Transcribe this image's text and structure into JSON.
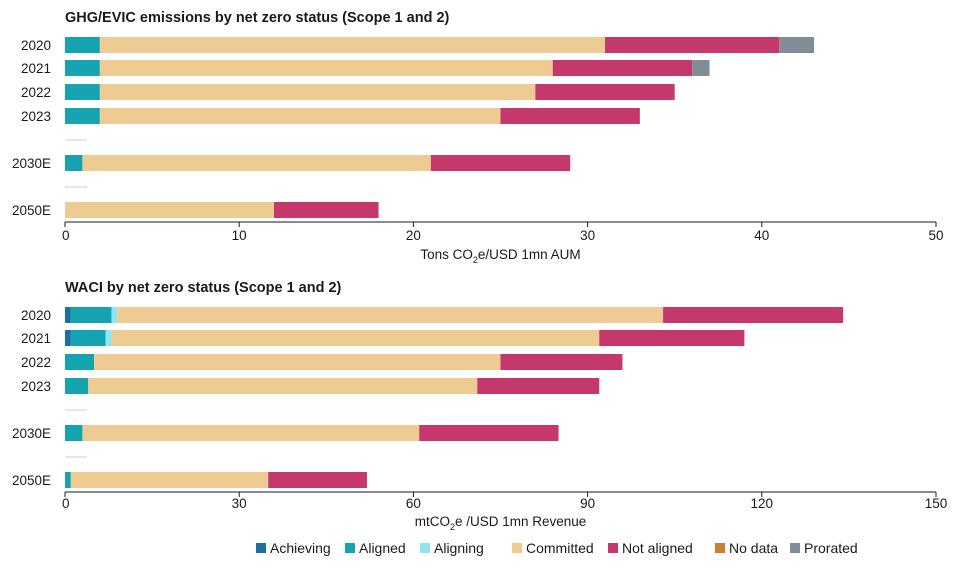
{
  "legend": [
    {
      "name": "Achieving",
      "color": "#1b6fa3"
    },
    {
      "name": "Aligned",
      "color": "#16a3b0"
    },
    {
      "name": "Aligning",
      "color": "#8ee4f0"
    },
    {
      "name": "Committed",
      "color": "#efcb94"
    },
    {
      "name": "Not aligned",
      "color": "#c4386b"
    },
    {
      "name": "No data",
      "color": "#c7822b"
    },
    {
      "name": "Prorated",
      "color": "#808d99"
    }
  ],
  "chart_data": [
    {
      "type": "bar",
      "orientation": "horizontal",
      "stacked": true,
      "title": "GHG/EVIC emissions by net zero status (Scope 1 and 2)",
      "xlabel_main": "Tons CO",
      "xlabel_sub": "2",
      "xlabel_rest": "e/USD 1mn AUM",
      "xlim": [
        0,
        50
      ],
      "xticks": [
        "0",
        "10",
        "20",
        "30",
        "40",
        "50"
      ],
      "categories": [
        "2020",
        "2021",
        "2022",
        "2023",
        "2030E",
        "2050E"
      ],
      "series": [
        {
          "name": "Achieving",
          "values": [
            0,
            0,
            0,
            0,
            0,
            0
          ]
        },
        {
          "name": "Aligned",
          "values": [
            2,
            2,
            2,
            2,
            1,
            0
          ]
        },
        {
          "name": "Aligning",
          "values": [
            0,
            0,
            0,
            0,
            0,
            0
          ]
        },
        {
          "name": "Committed",
          "values": [
            29,
            26,
            25,
            23,
            20,
            12
          ]
        },
        {
          "name": "Not aligned",
          "values": [
            10,
            8,
            8,
            8,
            8,
            6
          ]
        },
        {
          "name": "No data",
          "values": [
            0,
            0,
            0,
            0,
            0,
            0
          ]
        },
        {
          "name": "Prorated",
          "values": [
            2,
            1,
            0,
            0,
            0,
            0
          ]
        }
      ]
    },
    {
      "type": "bar",
      "orientation": "horizontal",
      "stacked": true,
      "title": "WACI by net zero status (Scope 1 and 2)",
      "xlabel_main": "mtCO",
      "xlabel_sub": "2",
      "xlabel_rest": "e /USD 1mn Revenue",
      "xlim": [
        0,
        150
      ],
      "xticks": [
        "0",
        "30",
        "60",
        "90",
        "120",
        "150"
      ],
      "categories": [
        "2020",
        "2021",
        "2022",
        "2023",
        "2030E",
        "2050E"
      ],
      "series": [
        {
          "name": "Achieving",
          "values": [
            1,
            1,
            0,
            0,
            0,
            0
          ]
        },
        {
          "name": "Aligned",
          "values": [
            7,
            6,
            5,
            4,
            3,
            1
          ]
        },
        {
          "name": "Aligning",
          "values": [
            1,
            1,
            0,
            0,
            0,
            0
          ]
        },
        {
          "name": "Committed",
          "values": [
            94,
            84,
            70,
            67,
            58,
            34
          ]
        },
        {
          "name": "Not aligned",
          "values": [
            31,
            25,
            21,
            21,
            24,
            17
          ]
        },
        {
          "name": "No data",
          "values": [
            0,
            0,
            0,
            0,
            0,
            0
          ]
        },
        {
          "name": "Prorated",
          "values": [
            0,
            0,
            0,
            0,
            0,
            0
          ]
        }
      ]
    }
  ]
}
